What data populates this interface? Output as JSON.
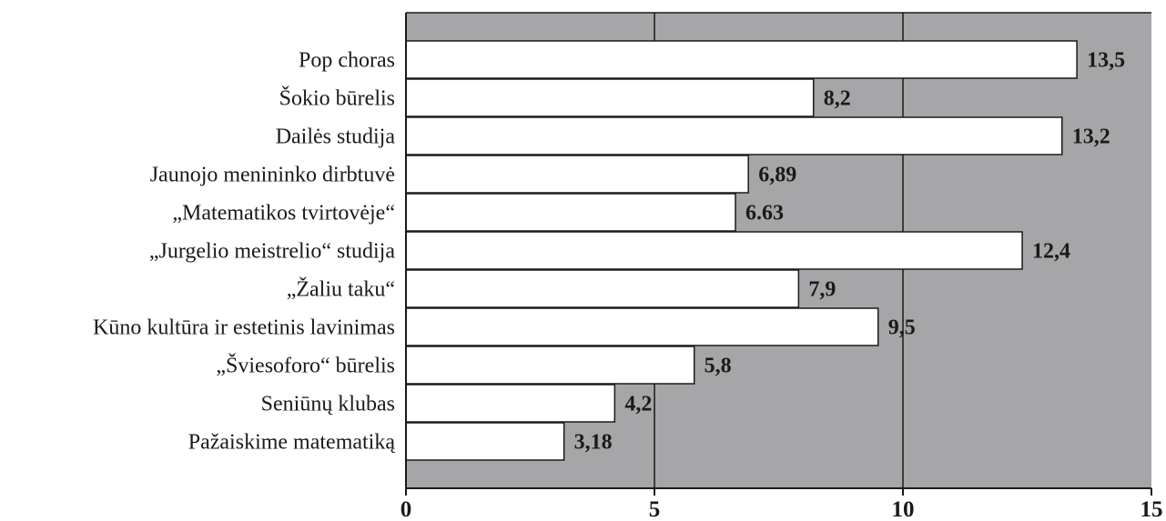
{
  "chart_data": {
    "type": "bar",
    "orientation": "horizontal",
    "categories": [
      "Pop choras",
      "Šokio būrelis",
      "Dailės studija",
      "Jaunojo menininko dirbtuvė",
      "„Matematikos tvirtovėje“",
      "„Jurgelio meistrelio“ studija",
      "„Žaliu taku“",
      "Kūno kultūra ir estetinis lavinimas",
      "„Šviesoforo“ būrelis",
      "Seniūnų klubas",
      "Pažaiskime matematiką"
    ],
    "values": [
      13.5,
      8.2,
      13.2,
      6.89,
      6.63,
      12.4,
      7.9,
      9.5,
      5.8,
      4.2,
      3.18
    ],
    "value_labels": [
      "13,5",
      "8,2",
      "13,2",
      "6,89",
      "6.63",
      "12,4",
      "7,9",
      "9,5",
      "5,8",
      "4,2",
      "3,18"
    ],
    "xlim": [
      0,
      15
    ],
    "xticks": [
      0,
      5,
      10,
      15
    ],
    "xtick_labels": [
      "0",
      "5",
      "10",
      "15"
    ],
    "grid": true,
    "title": "",
    "xlabel": "",
    "ylabel": ""
  },
  "colors": {
    "plot_background": "#a6a6a8",
    "bar_fill": "#ffffff",
    "stroke": "#1a1a1a"
  }
}
